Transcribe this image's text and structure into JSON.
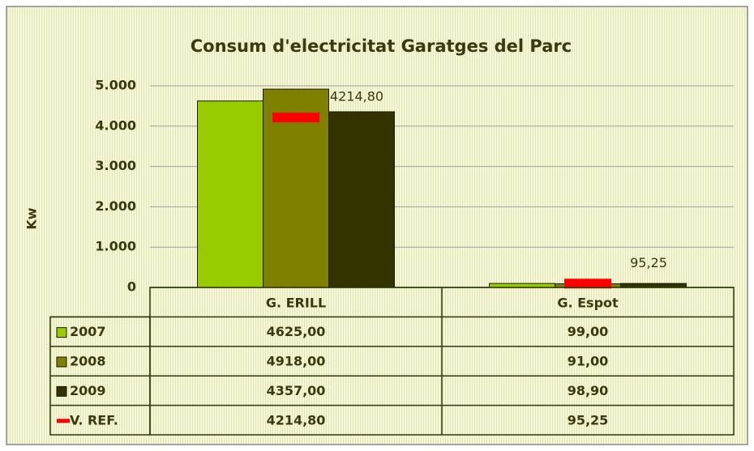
{
  "chart_data": {
    "type": "bar",
    "title": "Consum d'electricitat Garatges del Parc",
    "y_label": "Kw",
    "categories": [
      "G. ERILL",
      "G. Espot"
    ],
    "series": [
      {
        "name": "2007",
        "color": "#99cc00",
        "type": "bar",
        "values": [
          4625,
          99
        ],
        "value_labels": [
          "4625,00",
          "99,00"
        ]
      },
      {
        "name": "2008",
        "color": "#808000",
        "type": "bar",
        "values": [
          4918,
          91
        ],
        "value_labels": [
          "4918,00",
          "91,00"
        ]
      },
      {
        "name": "2009",
        "color": "#333300",
        "type": "bar",
        "values": [
          4357,
          98.9
        ],
        "value_labels": [
          "4357,00",
          "98,90"
        ]
      },
      {
        "name": "V. REF.",
        "color": "#ff0000",
        "type": "marker",
        "data_labels": true,
        "values": [
          4214.8,
          95.25
        ],
        "value_labels": [
          "4214,80",
          "95,25"
        ]
      }
    ],
    "ylim": [
      0,
      5000
    ],
    "yticks": [
      0,
      {
        "value": 1000,
        "label": "1.000"
      },
      {
        "value": 2000,
        "label": "2.000"
      },
      {
        "value": 3000,
        "label": "3.000"
      },
      {
        "value": 4000,
        "label": "4.000"
      },
      {
        "value": 5000,
        "label": "5.000"
      }
    ],
    "grid": true,
    "data_table": true
  }
}
